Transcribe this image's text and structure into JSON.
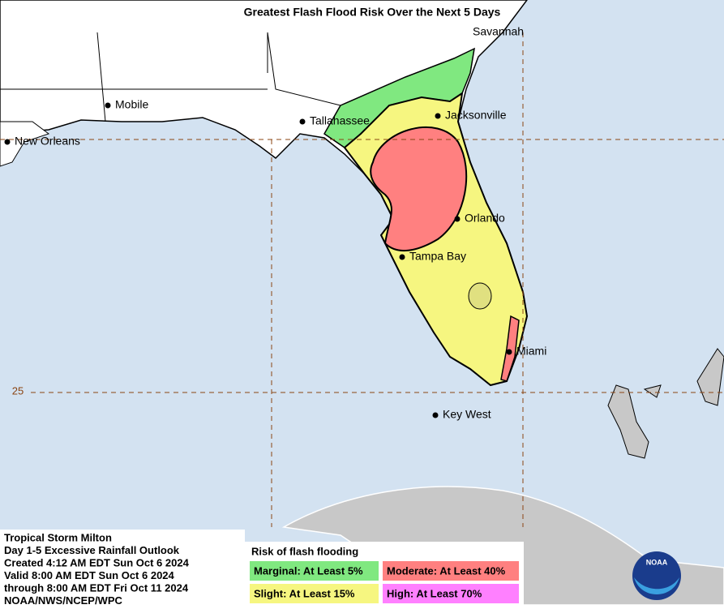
{
  "title": "Greatest Flash Flood Risk Over the Next 5 Days",
  "cities": [
    "Savannah",
    "Mobile",
    "Tallahassee",
    "New Orleans",
    "Jacksonville",
    "Orlando",
    "Tampa Bay",
    "Miami",
    "Key West"
  ],
  "grid_labels": [
    "25"
  ],
  "info": [
    "Tropical Storm Milton",
    "Day 1-5 Excessive Rainfall Outlook",
    "Created 4:12 AM EDT Sun Oct 6 2024",
    "Valid 8:00 AM EDT Sun Oct 6 2024",
    "through 8:00 AM EDT Fri Oct 11 2024",
    "NOAA/NWS/NCEP/WPC"
  ],
  "legend": {
    "title": "Risk of flash flooding",
    "items": [
      {
        "label": "Marginal: At Least 5%",
        "color": "#80e880"
      },
      {
        "label": "Moderate: At Least 40%",
        "color": "#ff8080"
      },
      {
        "label": "Slight: At Least 15%",
        "color": "#f6f680"
      },
      {
        "label": "High: At Least 70%",
        "color": "#ff80ff"
      }
    ]
  },
  "logo_text": "NOAA"
}
